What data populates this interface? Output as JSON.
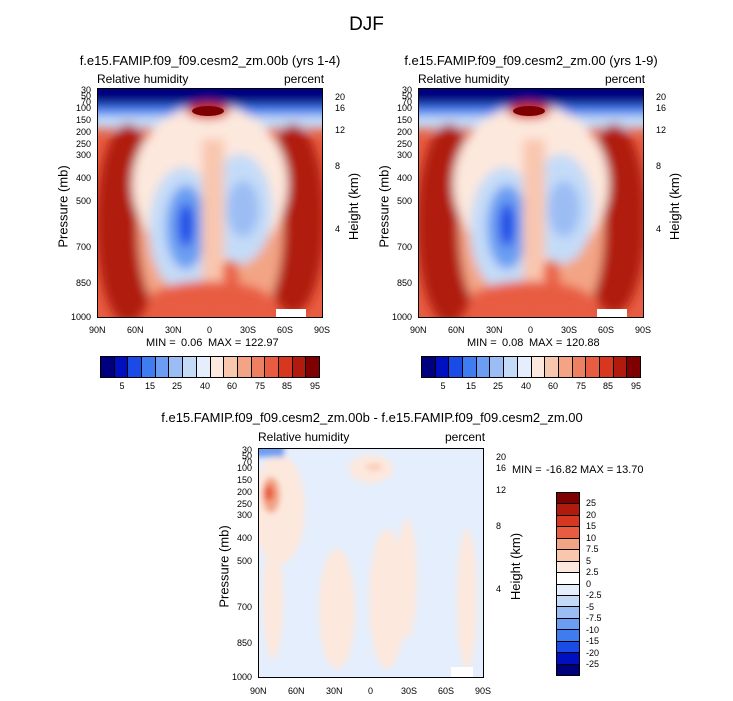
{
  "main_title": "DJF",
  "colors": {
    "rh": [
      "#00007f",
      "#0010c0",
      "#1a4be6",
      "#3f7cf0",
      "#6b9ef2",
      "#9bbdf4",
      "#c4dbf8",
      "#e4eefc",
      "#fde8dd",
      "#f9c6ae",
      "#f3a485",
      "#ee8062",
      "#e85d42",
      "#d8371f",
      "#b01b0d",
      "#7e0000"
    ],
    "diff": [
      "#7e0000",
      "#b01b0d",
      "#d8371f",
      "#e85d42",
      "#f3a485",
      "#f9c6ae",
      "#fde8dd",
      "#ffffff",
      "#e4eefc",
      "#c4dbf8",
      "#9bbdf4",
      "#6b9ef2",
      "#3f7cf0",
      "#1a4be6",
      "#0010c0",
      "#00007f"
    ]
  },
  "chart_data": [
    {
      "type": "heatmap",
      "title": "f.e15.FAMIP.f09_f09.cesm2_zm.00b (yrs 1-4)",
      "left_label": "Relative humidity",
      "right_label": "percent",
      "ylabel": "Pressure (mb)",
      "y2label": "Height (km)",
      "x_ticks": [
        "90N",
        "60N",
        "30N",
        "0",
        "30S",
        "60S",
        "90S"
      ],
      "y_ticks": [
        "30",
        "50",
        "70",
        "100",
        "150",
        "200",
        "250",
        "300",
        "400",
        "500",
        "700",
        "850",
        "1000"
      ],
      "y2_ticks": [
        "20",
        "16",
        "12",
        "8",
        "4"
      ],
      "ylim": [
        1000,
        30
      ],
      "min": "0.06",
      "max": "122.97",
      "min_label": "MIN =",
      "max_label": "MAX =",
      "colorbar_labels": [
        "5",
        "15",
        "25",
        "40",
        "60",
        "75",
        "85",
        "95"
      ]
    },
    {
      "type": "heatmap",
      "title": "f.e15.FAMIP.f09_f09.cesm2_zm.00 (yrs 1-9)",
      "left_label": "Relative humidity",
      "right_label": "percent",
      "ylabel": "Pressure (mb)",
      "y2label": "Height (km)",
      "x_ticks": [
        "90N",
        "60N",
        "30N",
        "0",
        "30S",
        "60S",
        "90S"
      ],
      "y_ticks": [
        "30",
        "50",
        "70",
        "100",
        "150",
        "200",
        "250",
        "300",
        "400",
        "500",
        "700",
        "850",
        "1000"
      ],
      "y2_ticks": [
        "20",
        "16",
        "12",
        "8",
        "4"
      ],
      "ylim": [
        1000,
        30
      ],
      "min": "0.08",
      "max": "120.88",
      "min_label": "MIN =",
      "max_label": "MAX =",
      "colorbar_labels": [
        "5",
        "15",
        "25",
        "40",
        "60",
        "75",
        "85",
        "95"
      ]
    },
    {
      "type": "heatmap",
      "title": "f.e15.FAMIP.f09_f09.cesm2_zm.00b - f.e15.FAMIP.f09_f09.cesm2_zm.00",
      "left_label": "Relative humidity",
      "right_label": "percent",
      "ylabel": "Pressure (mb)",
      "y2label": "Height (km)",
      "x_ticks": [
        "90N",
        "60N",
        "30N",
        "0",
        "30S",
        "60S",
        "90S"
      ],
      "y_ticks": [
        "30",
        "50",
        "70",
        "100",
        "150",
        "200",
        "250",
        "300",
        "400",
        "500",
        "700",
        "850",
        "1000"
      ],
      "y2_ticks": [
        "20",
        "16",
        "12",
        "8",
        "4"
      ],
      "ylim": [
        1000,
        30
      ],
      "min": "-16.82",
      "max": "13.70",
      "min_label": "MIN =",
      "max_label": "MAX =",
      "colorbar_labels": [
        "25",
        "20",
        "15",
        "10",
        "7.5",
        "5",
        "2.5",
        "0",
        "-2.5",
        "-5",
        "-7.5",
        "-10",
        "-15",
        "-20",
        "-25"
      ]
    }
  ]
}
